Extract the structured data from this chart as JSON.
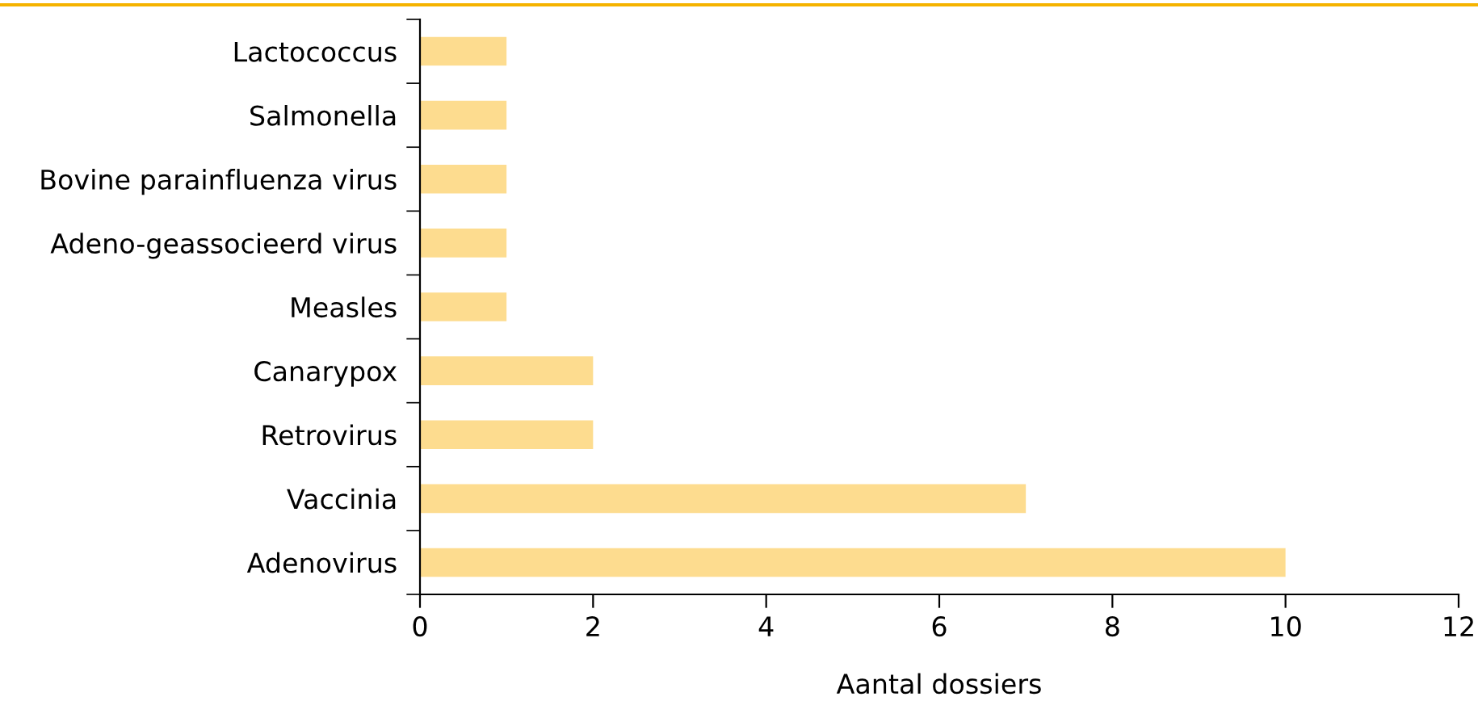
{
  "chart_data": {
    "type": "bar",
    "orientation": "horizontal",
    "xlabel": "Aantal dossiers",
    "categories": [
      "Lactococcus",
      "Salmonella",
      "Bovine parainfluenza virus",
      "Adeno-geassocieerd virus",
      "Measles",
      "Canarypox",
      "Retrovirus",
      "Vaccinia",
      "Adenovirus"
    ],
    "values": [
      1,
      1,
      1,
      1,
      1,
      2,
      2,
      7,
      10
    ],
    "color": "#fddc8f",
    "xlim": [
      0,
      12
    ],
    "xticks": [
      0,
      2,
      4,
      6,
      8,
      10,
      12
    ],
    "grid": false,
    "legend": false
  }
}
